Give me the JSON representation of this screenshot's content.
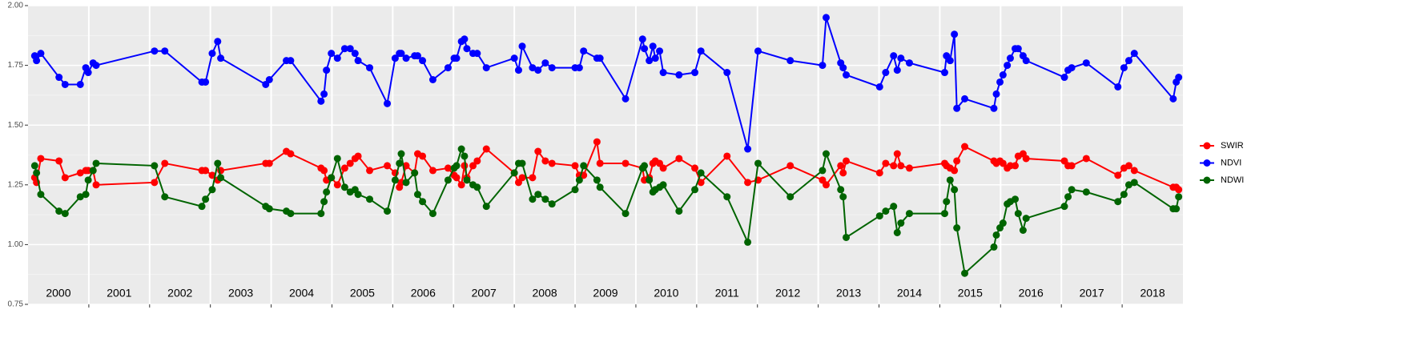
{
  "chart_data": {
    "type": "line",
    "x": [
      2000.11,
      2000.14,
      2000.21,
      2000.51,
      2000.61,
      2000.86,
      2000.95,
      2000.99,
      2001.07,
      2001.12,
      2002.08,
      2002.25,
      2002.86,
      2002.92,
      2003.03,
      2003.12,
      2003.17,
      2003.91,
      2003.97,
      2004.25,
      2004.32,
      2004.82,
      2004.87,
      2004.91,
      2004.99,
      2005.09,
      2005.21,
      2005.3,
      2005.38,
      2005.43,
      2005.62,
      2005.91,
      2006.04,
      2006.11,
      2006.14,
      2006.22,
      2006.36,
      2006.41,
      2006.49,
      2006.66,
      2006.91,
      2007.01,
      2007.05,
      2007.13,
      2007.18,
      2007.22,
      2007.32,
      2007.39,
      2007.54,
      2008.0,
      2008.07,
      2008.13,
      2008.3,
      2008.39,
      2008.51,
      2008.62,
      2009.0,
      2009.07,
      2009.14,
      2009.36,
      2009.41,
      2009.83,
      2010.11,
      2010.14,
      2010.22,
      2010.28,
      2010.32,
      2010.39,
      2010.45,
      2010.71,
      2010.97,
      2011.07,
      2011.5,
      2011.84,
      2012.01,
      2012.54,
      2013.07,
      2013.13,
      2013.37,
      2013.41,
      2013.46,
      2014.01,
      2014.11,
      2014.24,
      2014.3,
      2014.36,
      2014.5,
      2015.08,
      2015.11,
      2015.17,
      2015.24,
      2015.28,
      2015.41,
      2015.89,
      2015.93,
      2015.99,
      2016.04,
      2016.11,
      2016.16,
      2016.24,
      2016.29,
      2016.37,
      2016.42,
      2017.05,
      2017.11,
      2017.17,
      2017.41,
      2017.93,
      2018.03,
      2018.11,
      2018.2,
      2018.84,
      2018.89,
      2018.93
    ],
    "series": [
      {
        "name": "SWIR",
        "color": "#ff0000",
        "values": [
          1.28,
          1.26,
          1.36,
          1.35,
          1.28,
          1.3,
          1.31,
          1.31,
          1.31,
          1.25,
          1.26,
          1.34,
          1.31,
          1.31,
          1.29,
          1.27,
          1.31,
          1.34,
          1.34,
          1.39,
          1.38,
          1.32,
          1.31,
          1.27,
          1.28,
          1.25,
          1.32,
          1.34,
          1.36,
          1.37,
          1.31,
          1.33,
          1.3,
          1.24,
          1.26,
          1.33,
          1.3,
          1.38,
          1.37,
          1.31,
          1.32,
          1.29,
          1.28,
          1.25,
          1.33,
          1.28,
          1.33,
          1.35,
          1.4,
          1.3,
          1.26,
          1.28,
          1.28,
          1.39,
          1.35,
          1.34,
          1.33,
          1.29,
          1.29,
          1.43,
          1.34,
          1.34,
          1.32,
          1.27,
          1.28,
          1.34,
          1.35,
          1.34,
          1.32,
          1.36,
          1.32,
          1.26,
          1.37,
          1.26,
          1.27,
          1.33,
          1.27,
          1.25,
          1.33,
          1.3,
          1.35,
          1.3,
          1.34,
          1.33,
          1.38,
          1.33,
          1.32,
          1.34,
          1.33,
          1.32,
          1.31,
          1.35,
          1.41,
          1.35,
          1.34,
          1.35,
          1.34,
          1.32,
          1.33,
          1.33,
          1.37,
          1.38,
          1.36,
          1.35,
          1.33,
          1.33,
          1.36,
          1.29,
          1.32,
          1.33,
          1.31,
          1.24,
          1.24,
          1.23
        ]
      },
      {
        "name": "NDVI",
        "color": "#0000ff",
        "values": [
          1.79,
          1.77,
          1.8,
          1.7,
          1.67,
          1.67,
          1.74,
          1.72,
          1.76,
          1.75,
          1.81,
          1.81,
          1.68,
          1.68,
          1.8,
          1.85,
          1.78,
          1.67,
          1.69,
          1.77,
          1.77,
          1.6,
          1.63,
          1.73,
          1.8,
          1.78,
          1.82,
          1.82,
          1.8,
          1.77,
          1.74,
          1.59,
          1.78,
          1.8,
          1.8,
          1.78,
          1.79,
          1.79,
          1.77,
          1.69,
          1.74,
          1.78,
          1.78,
          1.85,
          1.86,
          1.82,
          1.8,
          1.8,
          1.74,
          1.78,
          1.73,
          1.83,
          1.74,
          1.73,
          1.76,
          1.74,
          1.74,
          1.74,
          1.81,
          1.78,
          1.78,
          1.61,
          1.86,
          1.82,
          1.77,
          1.83,
          1.78,
          1.81,
          1.72,
          1.71,
          1.72,
          1.81,
          1.72,
          1.4,
          1.81,
          1.77,
          1.75,
          1.95,
          1.76,
          1.74,
          1.71,
          1.66,
          1.72,
          1.79,
          1.73,
          1.78,
          1.76,
          1.72,
          1.79,
          1.77,
          1.88,
          1.57,
          1.61,
          1.57,
          1.63,
          1.68,
          1.71,
          1.75,
          1.78,
          1.82,
          1.82,
          1.79,
          1.77,
          1.7,
          1.73,
          1.74,
          1.76,
          1.66,
          1.74,
          1.77,
          1.8,
          1.61,
          1.68,
          1.7
        ]
      },
      {
        "name": "NDWI",
        "color": "#006400",
        "values": [
          1.33,
          1.3,
          1.21,
          1.14,
          1.13,
          1.2,
          1.21,
          1.27,
          1.31,
          1.34,
          1.33,
          1.2,
          1.16,
          1.19,
          1.23,
          1.34,
          1.28,
          1.16,
          1.15,
          1.14,
          1.13,
          1.13,
          1.18,
          1.22,
          1.28,
          1.36,
          1.24,
          1.22,
          1.23,
          1.21,
          1.19,
          1.14,
          1.27,
          1.34,
          1.38,
          1.26,
          1.3,
          1.21,
          1.18,
          1.13,
          1.27,
          1.32,
          1.33,
          1.4,
          1.37,
          1.27,
          1.25,
          1.24,
          1.16,
          1.3,
          1.34,
          1.34,
          1.19,
          1.21,
          1.19,
          1.17,
          1.23,
          1.27,
          1.33,
          1.27,
          1.24,
          1.13,
          1.32,
          1.33,
          1.27,
          1.22,
          1.23,
          1.24,
          1.25,
          1.14,
          1.23,
          1.3,
          1.2,
          1.01,
          1.34,
          1.2,
          1.31,
          1.38,
          1.23,
          1.2,
          1.03,
          1.12,
          1.14,
          1.16,
          1.05,
          1.09,
          1.13,
          1.13,
          1.18,
          1.27,
          1.23,
          1.07,
          0.88,
          0.99,
          1.04,
          1.07,
          1.09,
          1.17,
          1.18,
          1.19,
          1.13,
          1.06,
          1.11,
          1.16,
          1.2,
          1.23,
          1.22,
          1.18,
          1.21,
          1.25,
          1.26,
          1.15,
          1.15,
          1.2
        ]
      }
    ],
    "xlim": [
      2000,
      2019
    ],
    "xticks": [
      2001,
      2002,
      2003,
      2004,
      2005,
      2006,
      2007,
      2008,
      2009,
      2010,
      2011,
      2012,
      2013,
      2014,
      2015,
      2016,
      2017,
      2018
    ],
    "year_labels": [
      "2000",
      "2001",
      "2002",
      "2003",
      "2004",
      "2005",
      "2006",
      "2007",
      "2008",
      "2009",
      "2010",
      "2011",
      "2012",
      "2013",
      "2014",
      "2015",
      "2016",
      "2017",
      "2018"
    ],
    "ylim": [
      0.75,
      2.0
    ],
    "yticks": [
      0.75,
      {
        "value": 1.0,
        "label": "1.00"
      },
      1.25,
      {
        "value": 1.5,
        "label": "1.50"
      },
      1.75,
      {
        "value": 2.0,
        "label": "2.00"
      }
    ],
    "grid": true,
    "legend": "right"
  }
}
